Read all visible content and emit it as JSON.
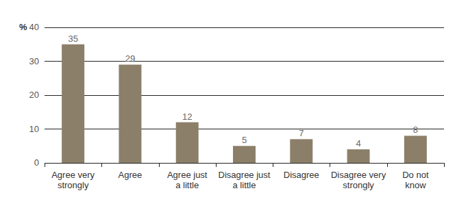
{
  "chart_data": {
    "type": "bar",
    "y_label": "%",
    "categories": [
      "Agree very strongly",
      "Agree",
      "Agree just a little",
      "Disagree just a little",
      "Disagree",
      "Disagree very strongly",
      "Do not know"
    ],
    "values": [
      35,
      29,
      12,
      5,
      7,
      4,
      8
    ],
    "color": "#8c7f69",
    "ylim": [
      0,
      40
    ],
    "yticks": [
      0,
      10,
      20,
      30,
      40
    ],
    "grid": true,
    "data_labels": true
  }
}
